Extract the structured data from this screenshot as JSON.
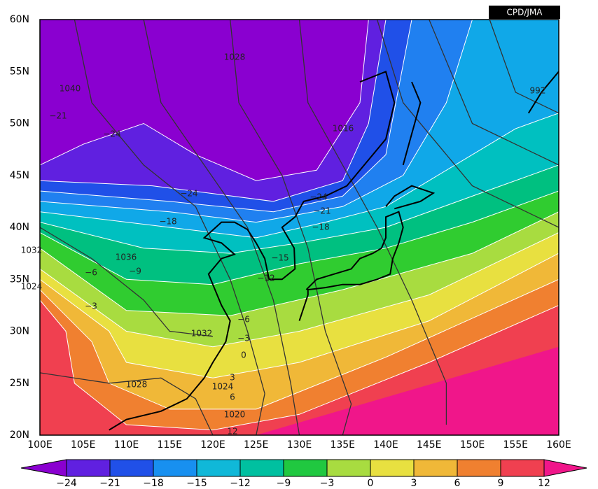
{
  "header": {
    "badge": "CPD/JMA"
  },
  "map": {
    "lat_labels": [
      "60N",
      "55N",
      "50N",
      "45N",
      "40N",
      "35N",
      "30N",
      "25N",
      "20N"
    ],
    "lon_labels": [
      "100E",
      "105E",
      "110E",
      "115E",
      "120E",
      "125E",
      "130E",
      "135E",
      "140E",
      "145E",
      "150E",
      "155E",
      "160E"
    ],
    "contour_labels": [
      "1028",
      "1040",
      "−21",
      "−24",
      "1016",
      "992",
      "−24",
      "−24",
      "−21",
      "−18",
      "−18",
      "1032",
      "1036",
      "−9",
      "−6",
      "−15",
      "−12",
      "1024",
      "−3",
      "−6",
      "1032",
      "−3",
      "0",
      "3",
      "1028",
      "1024",
      "6",
      "1020",
      "12"
    ]
  },
  "colorbar": {
    "labels": [
      "−24",
      "−21",
      "−18",
      "−15",
      "−12",
      "−9",
      "−3",
      "0",
      "3",
      "6",
      "9",
      "12"
    ]
  }
}
